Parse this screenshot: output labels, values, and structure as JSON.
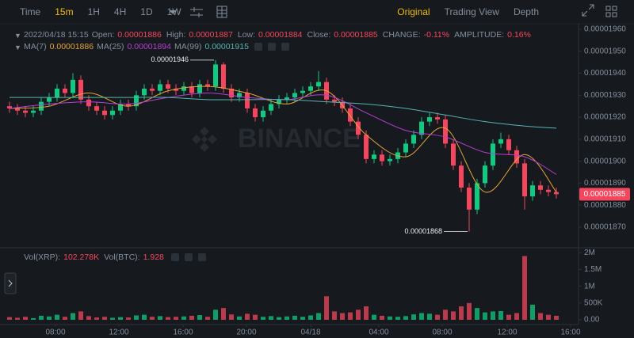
{
  "toolbar": {
    "intervals": [
      "Time",
      "15m",
      "1H",
      "4H",
      "1D",
      "1W"
    ],
    "active_interval": 1,
    "views": [
      "Original",
      "Trading View",
      "Depth"
    ],
    "active_view": 0
  },
  "chart_data": [
    {
      "type": "candlestick",
      "legend": {
        "time": "2022/04/18 15:15",
        "fields": [
          {
            "label": "Open:",
            "value": "0.00001886"
          },
          {
            "label": "High:",
            "value": "0.00001887"
          },
          {
            "label": "Low:",
            "value": "0.00001884"
          },
          {
            "label": "Close:",
            "value": "0.00001885"
          },
          {
            "label": "CHANGE:",
            "value": "-0.11%"
          },
          {
            "label": "AMPLITUDE:",
            "value": "0.16%"
          }
        ]
      },
      "watermark": "BINANCE",
      "up_color": "#0ecb81",
      "down_color": "#f6465d",
      "xlim": [
        -0.5,
        71.5
      ],
      "ylim": [
        1.861e-05,
        1.9625e-05
      ],
      "yticks": [
        {
          "value": 1.87e-05,
          "label": "0.00001870"
        },
        {
          "value": 1.88e-05,
          "label": "0.00001880"
        },
        {
          "value": 1.89e-05,
          "label": "0.00001890"
        },
        {
          "value": 1.9e-05,
          "label": "0.00001900"
        },
        {
          "value": 1.91e-05,
          "label": "0.00001910"
        },
        {
          "value": 1.92e-05,
          "label": "0.00001920"
        },
        {
          "value": 1.93e-05,
          "label": "0.00001930"
        },
        {
          "value": 1.94e-05,
          "label": "0.00001940"
        },
        {
          "value": 1.95e-05,
          "label": "0.00001950"
        },
        {
          "value": 1.96e-05,
          "label": "0.00001960"
        }
      ],
      "open": [
        1.925e-05,
        1.924e-05,
        1.923e-05,
        1.922e-05,
        1.923e-05,
        1.927e-05,
        1.929e-05,
        1.933e-05,
        1.931e-05,
        1.937e-05,
        1.928e-05,
        1.925e-05,
        1.923e-05,
        1.921e-05,
        1.923e-05,
        1.926e-05,
        1.925e-05,
        1.93e-05,
        1.933e-05,
        1.932e-05,
        1.935e-05,
        1.933e-05,
        1.932e-05,
        1.934e-05,
        1.931e-05,
        1.935e-05,
        1.934e-05,
        1.944e-05,
        1.933e-05,
        1.929e-05,
        1.931e-05,
        1.924e-05,
        1.92e-05,
        1.923e-05,
        1.926e-05,
        1.928e-05,
        1.929e-05,
        1.931e-05,
        1.932e-05,
        1.934e-05,
        1.936e-05,
        1.928e-05,
        1.927e-05,
        1.924e-05,
        1.918e-05,
        1.912e-05,
        1.901e-05,
        1.903e-05,
        1.9e-05,
        1.901e-05,
        1.904e-05,
        1.908e-05,
        1.912e-05,
        1.918e-05,
        1.92e-05,
        1.919e-05,
        1.908e-05,
        1.898e-05,
        1.888e-05,
        1.878e-05,
        1.89e-05,
        1.898e-05,
        1.908e-05,
        1.91e-05,
        1.905e-05,
        1.899e-05,
        1.884e-05,
        1.889e-05,
        1.887e-05,
        1.886e-05
      ],
      "high": [
        1.927e-05,
        1.926e-05,
        1.925e-05,
        1.925e-05,
        1.929e-05,
        1.931e-05,
        1.935e-05,
        1.935e-05,
        1.94e-05,
        1.939e-05,
        1.93e-05,
        1.927e-05,
        1.925e-05,
        1.925e-05,
        1.928e-05,
        1.928e-05,
        1.932e-05,
        1.935e-05,
        1.935e-05,
        1.937e-05,
        1.937e-05,
        1.935e-05,
        1.936e-05,
        1.936e-05,
        1.937e-05,
        1.937e-05,
        1.946e-05,
        1.945e-05,
        1.935e-05,
        1.933e-05,
        1.933e-05,
        1.926e-05,
        1.925e-05,
        1.928e-05,
        1.93e-05,
        1.931e-05,
        1.933e-05,
        1.934e-05,
        1.936e-05,
        1.941e-05,
        1.938e-05,
        1.93e-05,
        1.929e-05,
        1.926e-05,
        1.92e-05,
        1.914e-05,
        1.905e-05,
        1.905e-05,
        1.903e-05,
        1.906e-05,
        1.91e-05,
        1.914e-05,
        1.92e-05,
        1.922e-05,
        1.922e-05,
        1.921e-05,
        1.91e-05,
        1.9e-05,
        1.89e-05,
        1.892e-05,
        1.9e-05,
        1.91e-05,
        1.913e-05,
        1.912e-05,
        1.907e-05,
        1.901e-05,
        1.891e-05,
        1.891e-05,
        1.889e-05,
        1.888e-05
      ],
      "low": [
        1.922e-05,
        1.921e-05,
        1.92e-05,
        1.92e-05,
        1.921e-05,
        1.925e-05,
        1.927e-05,
        1.929e-05,
        1.929e-05,
        1.926e-05,
        1.923e-05,
        1.921e-05,
        1.919e-05,
        1.919e-05,
        1.921e-05,
        1.923e-05,
        1.923e-05,
        1.928e-05,
        1.93e-05,
        1.93e-05,
        1.931e-05,
        1.93e-05,
        1.93e-05,
        1.929e-05,
        1.929e-05,
        1.932e-05,
        1.932e-05,
        1.931e-05,
        1.927e-05,
        1.927e-05,
        1.922e-05,
        1.918e-05,
        1.918e-05,
        1.921e-05,
        1.924e-05,
        1.926e-05,
        1.927e-05,
        1.929e-05,
        1.93e-05,
        1.932e-05,
        1.926e-05,
        1.925e-05,
        1.922e-05,
        1.916e-05,
        1.91e-05,
        1.899e-05,
        1.899e-05,
        1.898e-05,
        1.898e-05,
        1.899e-05,
        1.902e-05,
        1.906e-05,
        1.91e-05,
        1.916e-05,
        1.917e-05,
        1.906e-05,
        1.896e-05,
        1.886e-05,
        1.868e-05,
        1.876e-05,
        1.888e-05,
        1.896e-05,
        1.906e-05,
        1.903e-05,
        1.897e-05,
        1.878e-05,
        1.882e-05,
        1.885e-05,
        1.884e-05,
        1.883e-05
      ],
      "close": [
        1.924e-05,
        1.923e-05,
        1.922e-05,
        1.923e-05,
        1.927e-05,
        1.929e-05,
        1.933e-05,
        1.931e-05,
        1.937e-05,
        1.928e-05,
        1.925e-05,
        1.923e-05,
        1.921e-05,
        1.923e-05,
        1.926e-05,
        1.925e-05,
        1.93e-05,
        1.933e-05,
        1.932e-05,
        1.935e-05,
        1.933e-05,
        1.932e-05,
        1.934e-05,
        1.931e-05,
        1.935e-05,
        1.934e-05,
        1.944e-05,
        1.933e-05,
        1.929e-05,
        1.931e-05,
        1.924e-05,
        1.92e-05,
        1.923e-05,
        1.926e-05,
        1.928e-05,
        1.929e-05,
        1.931e-05,
        1.932e-05,
        1.934e-05,
        1.936e-05,
        1.928e-05,
        1.927e-05,
        1.924e-05,
        1.918e-05,
        1.912e-05,
        1.901e-05,
        1.903e-05,
        1.9e-05,
        1.901e-05,
        1.904e-05,
        1.908e-05,
        1.912e-05,
        1.918e-05,
        1.92e-05,
        1.919e-05,
        1.908e-05,
        1.898e-05,
        1.888e-05,
        1.878e-05,
        1.89e-05,
        1.898e-05,
        1.908e-05,
        1.91e-05,
        1.905e-05,
        1.899e-05,
        1.884e-05,
        1.889e-05,
        1.887e-05,
        1.886e-05,
        1.885e-05
      ],
      "ma": [
        {
          "name": "MA(7)",
          "value_label": "0.00001886",
          "color": "#e5a23a",
          "x": [
            0,
            5,
            10,
            15,
            20,
            25,
            30,
            35,
            40,
            45,
            50,
            55,
            60,
            65,
            69
          ],
          "values": [
            1.924e-05,
            1.925e-05,
            1.931e-05,
            1.925e-05,
            1.932e-05,
            1.934e-05,
            1.931e-05,
            1.926e-05,
            1.932e-05,
            1.912e-05,
            1.902e-05,
            1.915e-05,
            1.886e-05,
            1.903e-05,
            1.886e-05
          ]
        },
        {
          "name": "MA(25)",
          "value_label": "0.00001894",
          "color": "#b53fd6",
          "x": [
            0,
            5,
            10,
            15,
            20,
            25,
            30,
            35,
            40,
            45,
            50,
            55,
            60,
            65,
            69
          ],
          "values": [
            1.924e-05,
            1.926e-05,
            1.927e-05,
            1.926e-05,
            1.929e-05,
            1.931e-05,
            1.929e-05,
            1.928e-05,
            1.93e-05,
            1.922e-05,
            1.914e-05,
            1.911e-05,
            1.904e-05,
            1.902e-05,
            1.894e-05
          ]
        },
        {
          "name": "MA(99)",
          "value_label": "0.00001915",
          "color": "#56b4b0",
          "x": [
            0,
            5,
            10,
            15,
            20,
            25,
            30,
            35,
            40,
            45,
            50,
            55,
            60,
            65,
            69
          ],
          "values": [
            1.929e-05,
            1.929e-05,
            1.929e-05,
            1.929e-05,
            1.929e-05,
            1.928e-05,
            1.928e-05,
            1.928e-05,
            1.927e-05,
            1.926e-05,
            1.924e-05,
            1.921e-05,
            1.918e-05,
            1.916e-05,
            1.915e-05
          ]
        }
      ],
      "annotations": [
        {
          "text": "0.00001946",
          "value": 1.946e-05,
          "x": 26
        },
        {
          "text": "0.00001868",
          "value": 1.868e-05,
          "x": 58
        }
      ],
      "last_price": {
        "value": 1.885e-05,
        "label": "0.00001885"
      }
    },
    {
      "type": "bar",
      "legend": {
        "fields": [
          {
            "label": "Vol(XRP):",
            "value": "102.278K"
          },
          {
            "label": "Vol(BTC):",
            "value": "1.928"
          }
        ]
      },
      "xlim": [
        -0.5,
        71.5
      ],
      "xticks": [
        {
          "value": 5.8,
          "label": "08:00"
        },
        {
          "value": 13.8,
          "label": "12:00"
        },
        {
          "value": 21.9,
          "label": "16:00"
        },
        {
          "value": 29.9,
          "label": "20:00"
        },
        {
          "value": 38,
          "label": "04/18"
        },
        {
          "value": 46.6,
          "label": "04:00"
        },
        {
          "value": 54.6,
          "label": "08:00"
        },
        {
          "value": 62.8,
          "label": "12:00"
        },
        {
          "value": 70.8,
          "label": "16:00"
        }
      ],
      "ylim": [
        0,
        2100000
      ],
      "yticks": [
        {
          "value": 0,
          "label": "0.00"
        },
        {
          "value": 500000,
          "label": "500K"
        },
        {
          "value": 1000000,
          "label": "1M"
        },
        {
          "value": 1500000,
          "label": "1.5M"
        },
        {
          "value": 2000000,
          "label": "2M"
        }
      ],
      "values": [
        80000,
        60000,
        90000,
        50000,
        120000,
        100000,
        150000,
        90000,
        200000,
        250000,
        110000,
        70000,
        90000,
        60000,
        80000,
        70000,
        130000,
        150000,
        90000,
        110000,
        80000,
        90000,
        100000,
        120000,
        140000,
        90000,
        300000,
        350000,
        160000,
        100000,
        180000,
        150000,
        90000,
        110000,
        80000,
        100000,
        120000,
        90000,
        130000,
        200000,
        700000,
        250000,
        200000,
        220000,
        300000,
        400000,
        150000,
        120000,
        100000,
        90000,
        110000,
        160000,
        200000,
        180000,
        150000,
        300000,
        250000,
        400000,
        500000,
        350000,
        220000,
        250000,
        260000,
        150000,
        200000,
        1900000,
        450000,
        200000,
        150000,
        120000
      ]
    }
  ]
}
